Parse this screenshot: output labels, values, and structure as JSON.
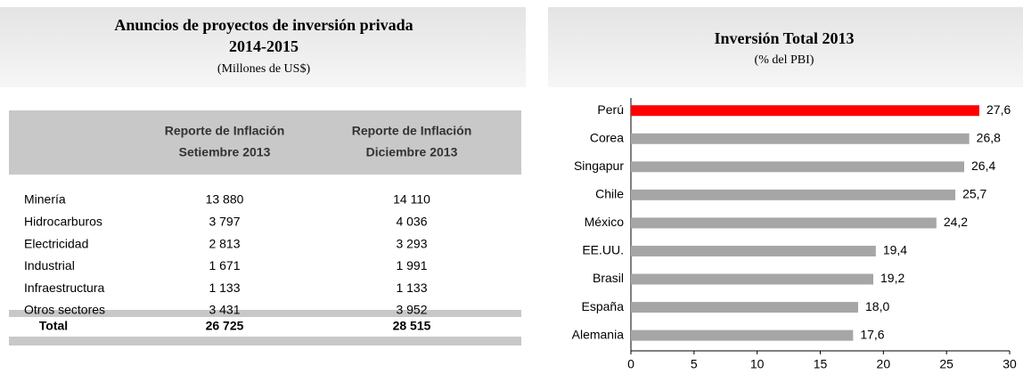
{
  "table": {
    "title": [
      "Anuncios de proyectos de inversión privada",
      "2014-2015"
    ],
    "subtitle": "(Millones de US$)",
    "header": [
      [
        "Reporte de Inflación",
        "Setiembre 2013"
      ],
      [
        "Reporte de Inflación",
        "Diciembre 2013"
      ]
    ],
    "rows": [
      [
        "Minería",
        "13 880",
        "14 110"
      ],
      [
        "Hidrocarburos",
        "3 797",
        "4 036"
      ],
      [
        "Electricidad",
        "2 813",
        "3 293"
      ],
      [
        "Industrial",
        "1 671",
        "1 991"
      ],
      [
        "Infraestructura",
        "1 133",
        "1 133"
      ],
      [
        "Otros sectores",
        "3 431",
        "3 952"
      ]
    ],
    "total": [
      "Total",
      "26 725",
      "28 515"
    ]
  },
  "chart_data": {
    "type": "bar",
    "orientation": "horizontal",
    "title": "Inversión Total 2013",
    "subtitle": "(% del PBI)",
    "categories": [
      "Perú",
      "Corea",
      "Singapur",
      "Chile",
      "México",
      "EE.UU.",
      "Brasil",
      "España",
      "Alemania"
    ],
    "values": [
      27.6,
      26.8,
      26.4,
      25.7,
      24.2,
      19.4,
      19.2,
      18.0,
      17.6
    ],
    "value_labels": [
      "27,6",
      "26,8",
      "26,4",
      "25,7",
      "24,2",
      "19,4",
      "19,2",
      "18,0",
      "17,6"
    ],
    "colors": [
      "#ff0000",
      "#a6a6a6",
      "#a6a6a6",
      "#a6a6a6",
      "#a6a6a6",
      "#a6a6a6",
      "#a6a6a6",
      "#a6a6a6",
      "#a6a6a6"
    ],
    "xlim": [
      0,
      30
    ],
    "xticks": [
      0,
      5,
      10,
      15,
      20,
      25,
      30
    ]
  }
}
